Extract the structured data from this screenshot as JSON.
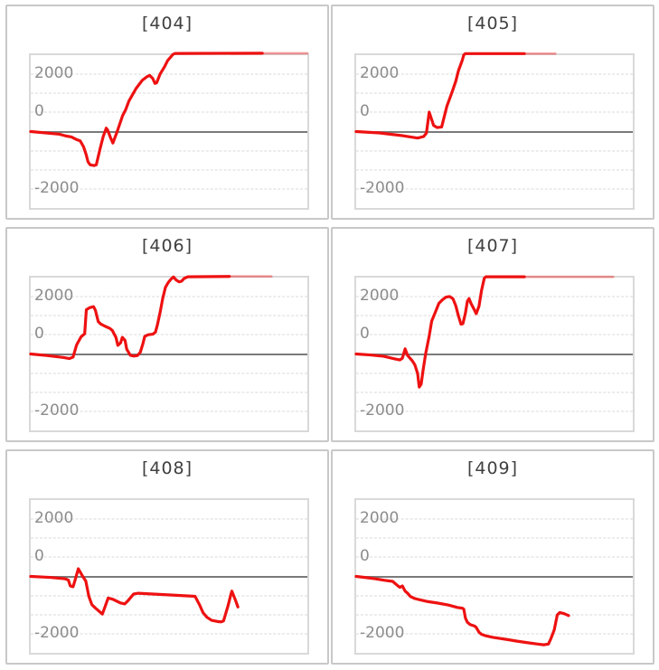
{
  "page": {
    "background": "#ffffff"
  },
  "style": {
    "line_color": "#ee1111",
    "faded_line_opacity": 0.4,
    "minor_gridline_color": "#dadada",
    "zero_line_color": "#7a7a7a",
    "tick_label_color": "#8c8c8c",
    "title_color": "#404040",
    "panel_border_color": "#c8c8c8",
    "plot_border_color": "#d9d9d9"
  },
  "axis": {
    "tick_labels": [
      "2000",
      "0",
      "-2000"
    ],
    "tick_label_positions_pct": [
      12.5,
      37.5,
      87.5
    ],
    "minor_grid_pct": [
      12.5,
      25,
      37.5,
      62.5,
      75,
      87.5
    ],
    "zero_line_pct": 50,
    "value_max": 2000,
    "value_min": -2000,
    "grid_interval": 500
  },
  "chart_data": [
    {
      "type": "line",
      "title": "[404]",
      "xlabel": "",
      "ylabel": "",
      "ylim": [
        -2000,
        2000
      ],
      "x_unit": "percent_of_plot_width",
      "legend": null,
      "grid": "minor dashed horizontal every 500, solid zero line",
      "points": [
        [
          0,
          0
        ],
        [
          5.5,
          -35
        ],
        [
          10.4,
          -70
        ],
        [
          12.7,
          -115
        ],
        [
          14.7,
          -140
        ],
        [
          16.3,
          -200
        ],
        [
          17.9,
          -245
        ],
        [
          19.1,
          -400
        ],
        [
          20,
          -595
        ],
        [
          20.7,
          -790
        ],
        [
          21.5,
          -870
        ],
        [
          22.9,
          -890
        ],
        [
          23.7,
          -870
        ],
        [
          25.1,
          -440
        ],
        [
          26.2,
          -130
        ],
        [
          27.3,
          90
        ],
        [
          27.8,
          40
        ],
        [
          28.9,
          -170
        ],
        [
          29.7,
          -300
        ],
        [
          31,
          -50
        ],
        [
          32.1,
          180
        ],
        [
          33.2,
          415
        ],
        [
          34.3,
          570
        ],
        [
          35.5,
          800
        ],
        [
          38.1,
          1130
        ],
        [
          40.3,
          1340
        ],
        [
          42.1,
          1440
        ],
        [
          43,
          1470
        ],
        [
          44.1,
          1390
        ],
        [
          44.9,
          1260
        ],
        [
          45.5,
          1275
        ],
        [
          46.8,
          1510
        ],
        [
          48.4,
          1700
        ],
        [
          49.5,
          1860
        ],
        [
          50.6,
          1950
        ],
        [
          51.4,
          2020
        ],
        [
          52.2,
          2045
        ],
        [
          83.7,
          2050
        ]
      ],
      "faded_tail_points": [
        [
          83.7,
          2050
        ],
        [
          100,
          2050
        ]
      ]
    },
    {
      "type": "line",
      "title": "[405]",
      "xlabel": "",
      "ylabel": "",
      "ylim": [
        -2000,
        2000
      ],
      "x_unit": "percent_of_plot_width",
      "legend": null,
      "grid": "minor dashed horizontal every 500, solid zero line",
      "points": [
        [
          0,
          0
        ],
        [
          8.4,
          -35
        ],
        [
          17,
          -110
        ],
        [
          22.2,
          -170
        ],
        [
          24.4,
          -130
        ],
        [
          25.4,
          -40
        ],
        [
          26.4,
          510
        ],
        [
          28,
          160
        ],
        [
          29.3,
          105
        ],
        [
          30.9,
          120
        ],
        [
          32.8,
          665
        ],
        [
          34.7,
          1040
        ],
        [
          36,
          1315
        ],
        [
          37,
          1600
        ],
        [
          38.3,
          1855
        ],
        [
          38.9,
          2005
        ],
        [
          39.5,
          2040
        ],
        [
          60.8,
          2040
        ]
      ],
      "faded_tail_points": [
        [
          60.8,
          2040
        ],
        [
          72,
          2040
        ]
      ]
    },
    {
      "type": "line",
      "title": "[406]",
      "xlabel": "",
      "ylabel": "",
      "ylim": [
        -2000,
        2000
      ],
      "x_unit": "percent_of_plot_width",
      "legend": null,
      "grid": "minor dashed horizontal every 500, solid zero line",
      "points": [
        [
          0,
          0
        ],
        [
          5.8,
          -40
        ],
        [
          11.7,
          -90
        ],
        [
          14,
          -120
        ],
        [
          15.3,
          -80
        ],
        [
          16.6,
          240
        ],
        [
          18.2,
          450
        ],
        [
          19.5,
          530
        ],
        [
          20.1,
          1160
        ],
        [
          21.4,
          1215
        ],
        [
          22.7,
          1240
        ],
        [
          23.4,
          1140
        ],
        [
          24.4,
          850
        ],
        [
          25.3,
          785
        ],
        [
          26.9,
          725
        ],
        [
          28.6,
          670
        ],
        [
          29.5,
          615
        ],
        [
          30.8,
          435
        ],
        [
          31.5,
          225
        ],
        [
          32.5,
          295
        ],
        [
          33.1,
          435
        ],
        [
          34.1,
          355
        ],
        [
          34.7,
          125
        ],
        [
          36,
          -35
        ],
        [
          37.3,
          -55
        ],
        [
          38.6,
          -40
        ],
        [
          39.6,
          45
        ],
        [
          40.6,
          280
        ],
        [
          41.2,
          460
        ],
        [
          42.5,
          505
        ],
        [
          44.2,
          520
        ],
        [
          45.1,
          575
        ],
        [
          45.8,
          765
        ],
        [
          46.8,
          1100
        ],
        [
          47.7,
          1450
        ],
        [
          48.7,
          1745
        ],
        [
          49.7,
          1870
        ],
        [
          50.6,
          1950
        ],
        [
          51.6,
          2015
        ],
        [
          52.6,
          1935
        ],
        [
          53.6,
          1890
        ],
        [
          54.5,
          1905
        ],
        [
          55.5,
          1980
        ],
        [
          56.8,
          2020
        ],
        [
          71.8,
          2030
        ]
      ],
      "faded_tail_points": [
        [
          71.8,
          2030
        ],
        [
          87,
          2030
        ]
      ]
    },
    {
      "type": "line",
      "title": "[407]",
      "xlabel": "",
      "ylabel": "",
      "ylim": [
        -2000,
        2000
      ],
      "x_unit": "percent_of_plot_width",
      "legend": null,
      "grid": "minor dashed horizontal every 500, solid zero line",
      "points": [
        [
          0,
          0
        ],
        [
          5.1,
          -25
        ],
        [
          10,
          -60
        ],
        [
          13.8,
          -125
        ],
        [
          15.8,
          -155
        ],
        [
          16.7,
          -110
        ],
        [
          17.7,
          135
        ],
        [
          18.6,
          -40
        ],
        [
          20.3,
          -180
        ],
        [
          21.2,
          -280
        ],
        [
          22.2,
          -505
        ],
        [
          22.8,
          -865
        ],
        [
          23.5,
          -790
        ],
        [
          24.1,
          -470
        ],
        [
          25.1,
          0
        ],
        [
          26.4,
          470
        ],
        [
          27.3,
          860
        ],
        [
          28.6,
          1090
        ],
        [
          29.9,
          1325
        ],
        [
          31.2,
          1420
        ],
        [
          32.5,
          1490
        ],
        [
          33.8,
          1505
        ],
        [
          35,
          1445
        ],
        [
          36,
          1265
        ],
        [
          37,
          990
        ],
        [
          37.9,
          780
        ],
        [
          38.6,
          795
        ],
        [
          39.5,
          1070
        ],
        [
          40.2,
          1380
        ],
        [
          40.8,
          1450
        ],
        [
          41.5,
          1325
        ],
        [
          42.8,
          1145
        ],
        [
          43.4,
          1055
        ],
        [
          44.4,
          1250
        ],
        [
          45.3,
          1655
        ],
        [
          46.3,
          1980
        ],
        [
          46.9,
          2020
        ],
        [
          60.8,
          2020
        ]
      ],
      "faded_tail_points": [
        [
          60.8,
          2020
        ],
        [
          92.9,
          2020
        ]
      ]
    },
    {
      "type": "line",
      "title": "[408]",
      "xlabel": "",
      "ylabel": "",
      "ylim": [
        -2000,
        2000
      ],
      "x_unit": "percent_of_plot_width",
      "legend": null,
      "grid": "minor dashed horizontal every 500, solid zero line",
      "points": [
        [
          0,
          0
        ],
        [
          6.9,
          -25
        ],
        [
          12.3,
          -60
        ],
        [
          13.6,
          -95
        ],
        [
          14.3,
          -250
        ],
        [
          15.3,
          -270
        ],
        [
          15.9,
          -130
        ],
        [
          17.2,
          200
        ],
        [
          18.8,
          0
        ],
        [
          19.9,
          -120
        ],
        [
          21,
          -520
        ],
        [
          22.1,
          -740
        ],
        [
          23.4,
          -830
        ],
        [
          25.9,
          -985
        ],
        [
          28,
          -565
        ],
        [
          29.6,
          -595
        ],
        [
          32.4,
          -695
        ],
        [
          34,
          -720
        ],
        [
          35.1,
          -640
        ],
        [
          37.2,
          -460
        ],
        [
          38.9,
          -440
        ],
        [
          59.4,
          -520
        ],
        [
          61,
          -740
        ],
        [
          62.3,
          -950
        ],
        [
          63.7,
          -1070
        ],
        [
          65.4,
          -1150
        ],
        [
          67.5,
          -1180
        ],
        [
          68.8,
          -1190
        ],
        [
          69.7,
          -1165
        ],
        [
          71.3,
          -775
        ],
        [
          72.4,
          -460
        ],
        [
          72.7,
          -385
        ],
        [
          74,
          -620
        ],
        [
          74.9,
          -800
        ]
      ],
      "faded_tail_points": []
    },
    {
      "type": "line",
      "title": "[409]",
      "xlabel": "",
      "ylabel": "",
      "ylim": [
        -2000,
        2000
      ],
      "x_unit": "percent_of_plot_width",
      "legend": null,
      "grid": "minor dashed horizontal every 500, solid zero line",
      "points": [
        [
          0,
          0
        ],
        [
          3.5,
          -30
        ],
        [
          6.8,
          -60
        ],
        [
          10,
          -100
        ],
        [
          13.2,
          -130
        ],
        [
          14.8,
          -230
        ],
        [
          15.8,
          -285
        ],
        [
          16.7,
          -250
        ],
        [
          17.7,
          -385
        ],
        [
          18.6,
          -440
        ],
        [
          19.6,
          -525
        ],
        [
          21.2,
          -580
        ],
        [
          23.5,
          -620
        ],
        [
          26,
          -660
        ],
        [
          29.3,
          -695
        ],
        [
          33.4,
          -750
        ],
        [
          36.7,
          -815
        ],
        [
          38.3,
          -830
        ],
        [
          38.9,
          -855
        ],
        [
          39.5,
          -1090
        ],
        [
          40.2,
          -1200
        ],
        [
          41.2,
          -1260
        ],
        [
          42.8,
          -1300
        ],
        [
          43.4,
          -1335
        ],
        [
          44.4,
          -1460
        ],
        [
          45.3,
          -1515
        ],
        [
          46.9,
          -1555
        ],
        [
          49.5,
          -1595
        ],
        [
          54,
          -1645
        ],
        [
          58.2,
          -1695
        ],
        [
          62.4,
          -1740
        ],
        [
          65.6,
          -1770
        ],
        [
          67.8,
          -1790
        ],
        [
          69.5,
          -1770
        ],
        [
          70.4,
          -1630
        ],
        [
          71.6,
          -1400
        ],
        [
          72.7,
          -1010
        ],
        [
          73.6,
          -945
        ],
        [
          75.2,
          -975
        ],
        [
          76.8,
          -1025
        ]
      ],
      "faded_tail_points": []
    }
  ]
}
